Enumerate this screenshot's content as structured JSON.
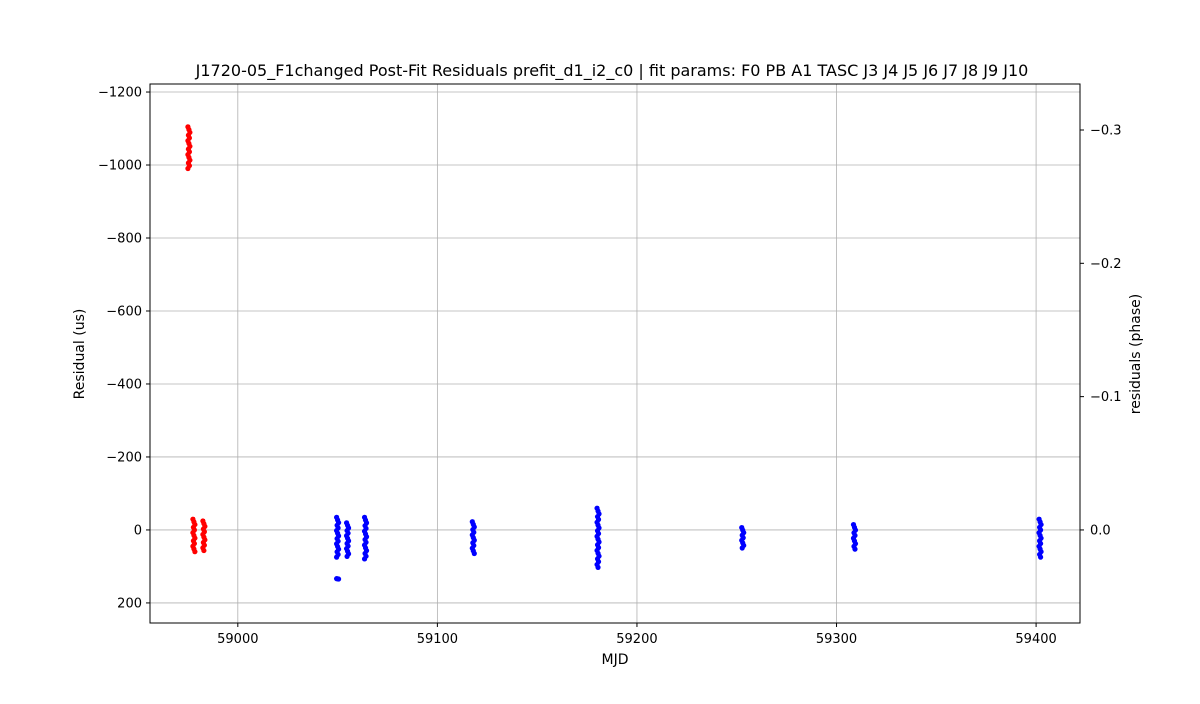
{
  "chart_data": {
    "type": "scatter",
    "title": "J1720-05_F1changed Post-Fit Residuals prefit_d1_i2_c0 | fit params: F0 PB A1 TASC J3 J4 J5 J6 J7 J8 J9 J10",
    "xlabel": "MJD",
    "ylabel": "Residual (us)",
    "y2label": "residuals (phase)",
    "xlim": [
      58956,
      59422
    ],
    "ylim": [
      255,
      -1222
    ],
    "y_inverted": true,
    "y2lim": [
      0.0698,
      -0.3345
    ],
    "grid": true,
    "xticks": [
      "59000",
      "59100",
      "59200",
      "59300",
      "59400"
    ],
    "xtick_values": [
      59000,
      59100,
      59200,
      59300,
      59400
    ],
    "yticks": [
      "−1200",
      "−1000",
      "−800",
      "−600",
      "−400",
      "−200",
      "0",
      "200"
    ],
    "ytick_values": [
      -1200,
      -1000,
      -800,
      -600,
      -400,
      -200,
      0,
      200
    ],
    "y2ticks": [
      "−0.3",
      "−0.2",
      "−0.1",
      "0.0"
    ],
    "y2tick_values": [
      -0.3,
      -0.2,
      -0.1,
      0.0
    ],
    "series": [
      {
        "color": "#ff0000",
        "clusters": [
          {
            "x": 58975.5,
            "ymin": -1110,
            "ymax": -985
          },
          {
            "x": 58978,
            "ymin": -35,
            "ymax": 65
          },
          {
            "x": 58983,
            "ymin": -30,
            "ymax": 62
          }
        ]
      },
      {
        "color": "#0000ff",
        "clusters": [
          {
            "x": 59050,
            "ymin": -40,
            "ymax": 80
          },
          {
            "x": 59050,
            "ymin": 128,
            "ymax": 140
          },
          {
            "x": 59055,
            "ymin": -25,
            "ymax": 78
          },
          {
            "x": 59064,
            "ymin": -40,
            "ymax": 85
          },
          {
            "x": 59118,
            "ymin": -28,
            "ymax": 70
          },
          {
            "x": 59180.5,
            "ymin": -65,
            "ymax": 108
          },
          {
            "x": 59253,
            "ymin": -12,
            "ymax": 55
          },
          {
            "x": 59309,
            "ymin": -20,
            "ymax": 58
          },
          {
            "x": 59402,
            "ymin": -35,
            "ymax": 80
          }
        ]
      }
    ]
  }
}
